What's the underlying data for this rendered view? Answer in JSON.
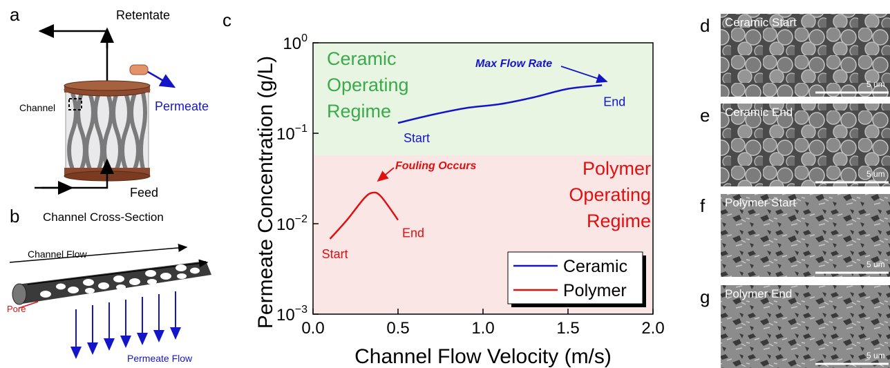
{
  "panel_a": {
    "letter": "a",
    "retentate": "Retentate",
    "channel": "Channel",
    "permeate": "Permeate",
    "feed": "Feed"
  },
  "panel_b": {
    "letter": "b",
    "title": "Channel Cross-Section",
    "channel_flow": "Channel Flow",
    "pore": "Pore",
    "permeate_flow": "Permeate Flow"
  },
  "chart_data": {
    "type": "line",
    "letter": "c",
    "x_label": "Channel Flow Velocity (m/s)",
    "y_label": "Permeate Concentration (g/L)",
    "xlim": [
      0,
      2
    ],
    "xticks": [
      {
        "value": 0,
        "label": "0.0"
      },
      0.5,
      {
        "value": 1,
        "label": "1.0"
      },
      1.5,
      {
        "value": 2,
        "label": "2.0"
      }
    ],
    "ylim": [
      0.001,
      1
    ],
    "ylog": true,
    "yticks": [
      {
        "value": 1,
        "label": "10^0"
      },
      {
        "value": 0.1,
        "label": "10^−1"
      },
      {
        "value": 0.01,
        "label": "10^−2"
      },
      {
        "value": 0.001,
        "label": "10^−3"
      }
    ],
    "regime_boundary": 0.057,
    "regimes": [
      {
        "lines": [
          "Ceramic",
          "Operating",
          "Regime"
        ],
        "color": "#3aaa4a",
        "fill": "#e8f5e3"
      },
      {
        "lines": [
          "Polymer",
          "Operating",
          "Regime"
        ],
        "color": "#e01010",
        "fill": "#fbe6e6"
      }
    ],
    "series": [
      {
        "name": "Ceramic",
        "color": "#1515c8",
        "start_label": "Start",
        "end_label": "End",
        "x": [
          0.5,
          0.7,
          0.9,
          1.1,
          1.3,
          1.5,
          1.7
        ],
        "values": [
          0.13,
          0.16,
          0.19,
          0.21,
          0.25,
          0.31,
          0.34
        ]
      },
      {
        "name": "Polymer",
        "color": "#e01010",
        "start_label": "Start",
        "end_label": "End",
        "x": [
          0.1,
          0.2,
          0.3,
          0.35,
          0.4,
          0.5
        ],
        "values": [
          0.0068,
          0.011,
          0.019,
          0.022,
          0.02,
          0.011
        ]
      }
    ],
    "annotations": [
      {
        "text": "Max Flow Rate",
        "color": "#1515c8"
      },
      {
        "text": "Fouling Occurs",
        "color": "#e01010"
      }
    ],
    "legend": "lower right"
  },
  "micrographs": [
    {
      "letter": "d",
      "caption": "Ceramic Start",
      "scale": "5 um",
      "kind": "ceramic"
    },
    {
      "letter": "e",
      "caption": "Ceramic End",
      "scale": "5 um",
      "kind": "ceramic"
    },
    {
      "letter": "f",
      "caption": "Polymer Start",
      "scale": "5 um",
      "kind": "polymer"
    },
    {
      "letter": "g",
      "caption": "Polymer End",
      "scale": "5 um",
      "kind": "polymer"
    }
  ]
}
